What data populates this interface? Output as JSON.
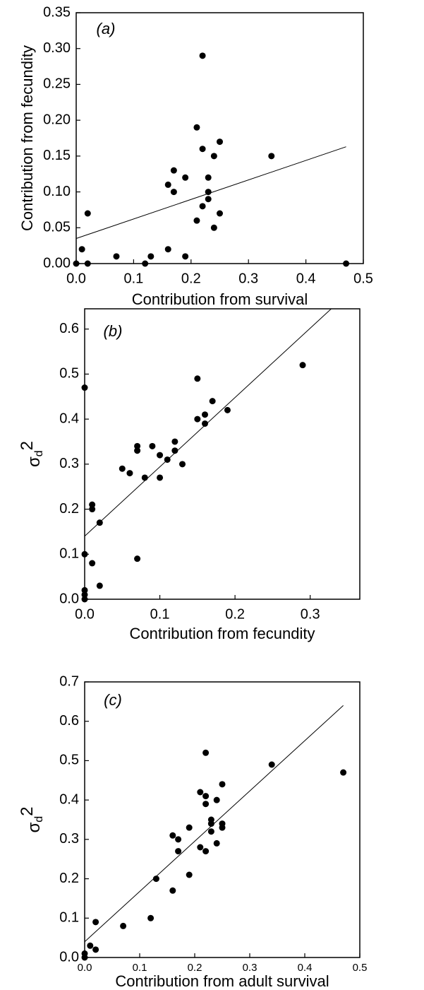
{
  "chart_data": [
    {
      "type": "scatter",
      "annotation": "(a)",
      "x_label": "Contribution from survival",
      "y_label": "Contribution from fecundity",
      "xlim": [
        0,
        0.5
      ],
      "ylim": [
        0,
        0.35
      ],
      "xticks": [
        {
          "value": 0,
          "label": "0.0"
        },
        {
          "value": 0.1,
          "label": "0.1"
        },
        {
          "value": 0.2,
          "label": "0.2"
        },
        {
          "value": 0.3,
          "label": "0.3"
        },
        {
          "value": 0.4,
          "label": "0.4"
        },
        {
          "value": 0.5,
          "label": "0.5"
        }
      ],
      "yticks": [
        {
          "value": 0,
          "label": "0.00"
        },
        {
          "value": 0.05,
          "label": "0.05"
        },
        {
          "value": 0.1,
          "label": "0.10"
        },
        {
          "value": 0.15,
          "label": "0.15"
        },
        {
          "value": 0.2,
          "label": "0.20"
        },
        {
          "value": 0.25,
          "label": "0.25"
        },
        {
          "value": 0.3,
          "label": "0.30"
        },
        {
          "value": 0.35,
          "label": "0.35"
        }
      ],
      "color": "#000000",
      "x": [
        0,
        0.01,
        0.02,
        0.02,
        0.07,
        0.12,
        0.13,
        0.16,
        0.16,
        0.17,
        0.17,
        0.19,
        0.19,
        0.21,
        0.21,
        0.22,
        0.22,
        0.22,
        0.23,
        0.23,
        0.23,
        0.24,
        0.24,
        0.25,
        0.25,
        0.34,
        0.47
      ],
      "values": [
        0,
        0.02,
        0,
        0.07,
        0.01,
        0,
        0.01,
        0.02,
        0.11,
        0.13,
        0.1,
        0.12,
        0.01,
        0.19,
        0.06,
        0.29,
        0.16,
        0.08,
        0.12,
        0.1,
        0.09,
        0.15,
        0.05,
        0.17,
        0.07,
        0.15,
        0
      ],
      "fit": {
        "x": [
          0,
          0.47
        ],
        "values": [
          0.035,
          0.163
        ]
      }
    },
    {
      "type": "scatter",
      "annotation": "(b)",
      "x_label": "Contribution from fecundity",
      "y_label": {
        "base": "σ",
        "sub": "d",
        "sup": "2"
      },
      "xlim": [
        0,
        0.366
      ],
      "ylim": [
        0,
        0.645
      ],
      "xticks": [
        {
          "value": 0,
          "label": "0.0"
        },
        {
          "value": 0.1,
          "label": "0.1"
        },
        {
          "value": 0.2,
          "label": "0.2"
        },
        {
          "value": 0.3,
          "label": "0.3"
        }
      ],
      "yticks": [
        {
          "value": 0,
          "label": "0.0"
        },
        {
          "value": 0.1,
          "label": "0.1"
        },
        {
          "value": 0.2,
          "label": "0.2"
        },
        {
          "value": 0.3,
          "label": "0.3"
        },
        {
          "value": 0.4,
          "label": "0.4"
        },
        {
          "value": 0.5,
          "label": "0.5"
        },
        {
          "value": 0.6,
          "label": "0.6"
        }
      ],
      "color": "#000000",
      "x": [
        0,
        0,
        0,
        0,
        0,
        0.01,
        0.01,
        0.01,
        0.02,
        0.02,
        0.05,
        0.06,
        0.07,
        0.07,
        0.07,
        0.08,
        0.09,
        0.1,
        0.1,
        0.11,
        0.12,
        0.12,
        0.13,
        0.15,
        0.15,
        0.16,
        0.16,
        0.17,
        0.19,
        0.29
      ],
      "values": [
        0.47,
        0.1,
        0.02,
        0.01,
        0,
        0.21,
        0.2,
        0.08,
        0.17,
        0.03,
        0.29,
        0.28,
        0.34,
        0.33,
        0.09,
        0.27,
        0.34,
        0.32,
        0.27,
        0.31,
        0.35,
        0.33,
        0.3,
        0.49,
        0.4,
        0.41,
        0.39,
        0.44,
        0.42,
        0.52
      ],
      "fit": {
        "x": [
          0,
          0.328
        ],
        "values": [
          0.14,
          0.645
        ]
      }
    },
    {
      "type": "scatter",
      "annotation": "(c)",
      "x_label": "Contribution from adult survival",
      "y_label": {
        "base": "σ",
        "sub": "d",
        "sup": "2"
      },
      "xlim": [
        0,
        0.5
      ],
      "ylim": [
        0,
        0.7
      ],
      "xticks": [
        {
          "value": 0,
          "label": "0.0"
        },
        {
          "value": 0.1,
          "label": "0.1"
        },
        {
          "value": 0.2,
          "label": "0.2"
        },
        {
          "value": 0.3,
          "label": "0.3"
        },
        {
          "value": 0.4,
          "label": "0.4"
        },
        {
          "value": 0.5,
          "label": "0.5"
        }
      ],
      "yticks": [
        {
          "value": 0,
          "label": "0.0"
        },
        {
          "value": 0.1,
          "label": "0.1"
        },
        {
          "value": 0.2,
          "label": "0.2"
        },
        {
          "value": 0.3,
          "label": "0.3"
        },
        {
          "value": 0.4,
          "label": "0.4"
        },
        {
          "value": 0.5,
          "label": "0.5"
        },
        {
          "value": 0.6,
          "label": "0.6"
        },
        {
          "value": 0.7,
          "label": "0.7"
        }
      ],
      "color": "#000000",
      "x": [
        0,
        0,
        0.01,
        0.02,
        0.02,
        0.07,
        0.12,
        0.13,
        0.16,
        0.16,
        0.17,
        0.17,
        0.19,
        0.19,
        0.21,
        0.21,
        0.22,
        0.22,
        0.22,
        0.22,
        0.23,
        0.23,
        0.23,
        0.24,
        0.24,
        0.25,
        0.25,
        0.25,
        0.34,
        0.47
      ],
      "values": [
        0.01,
        0,
        0.03,
        0.09,
        0.02,
        0.08,
        0.1,
        0.2,
        0.31,
        0.17,
        0.3,
        0.27,
        0.33,
        0.21,
        0.42,
        0.28,
        0.52,
        0.41,
        0.39,
        0.27,
        0.35,
        0.34,
        0.32,
        0.4,
        0.29,
        0.44,
        0.34,
        0.33,
        0.49,
        0.47
      ],
      "fit": {
        "x": [
          0,
          0.47
        ],
        "values": [
          0.04,
          0.64
        ]
      }
    }
  ]
}
